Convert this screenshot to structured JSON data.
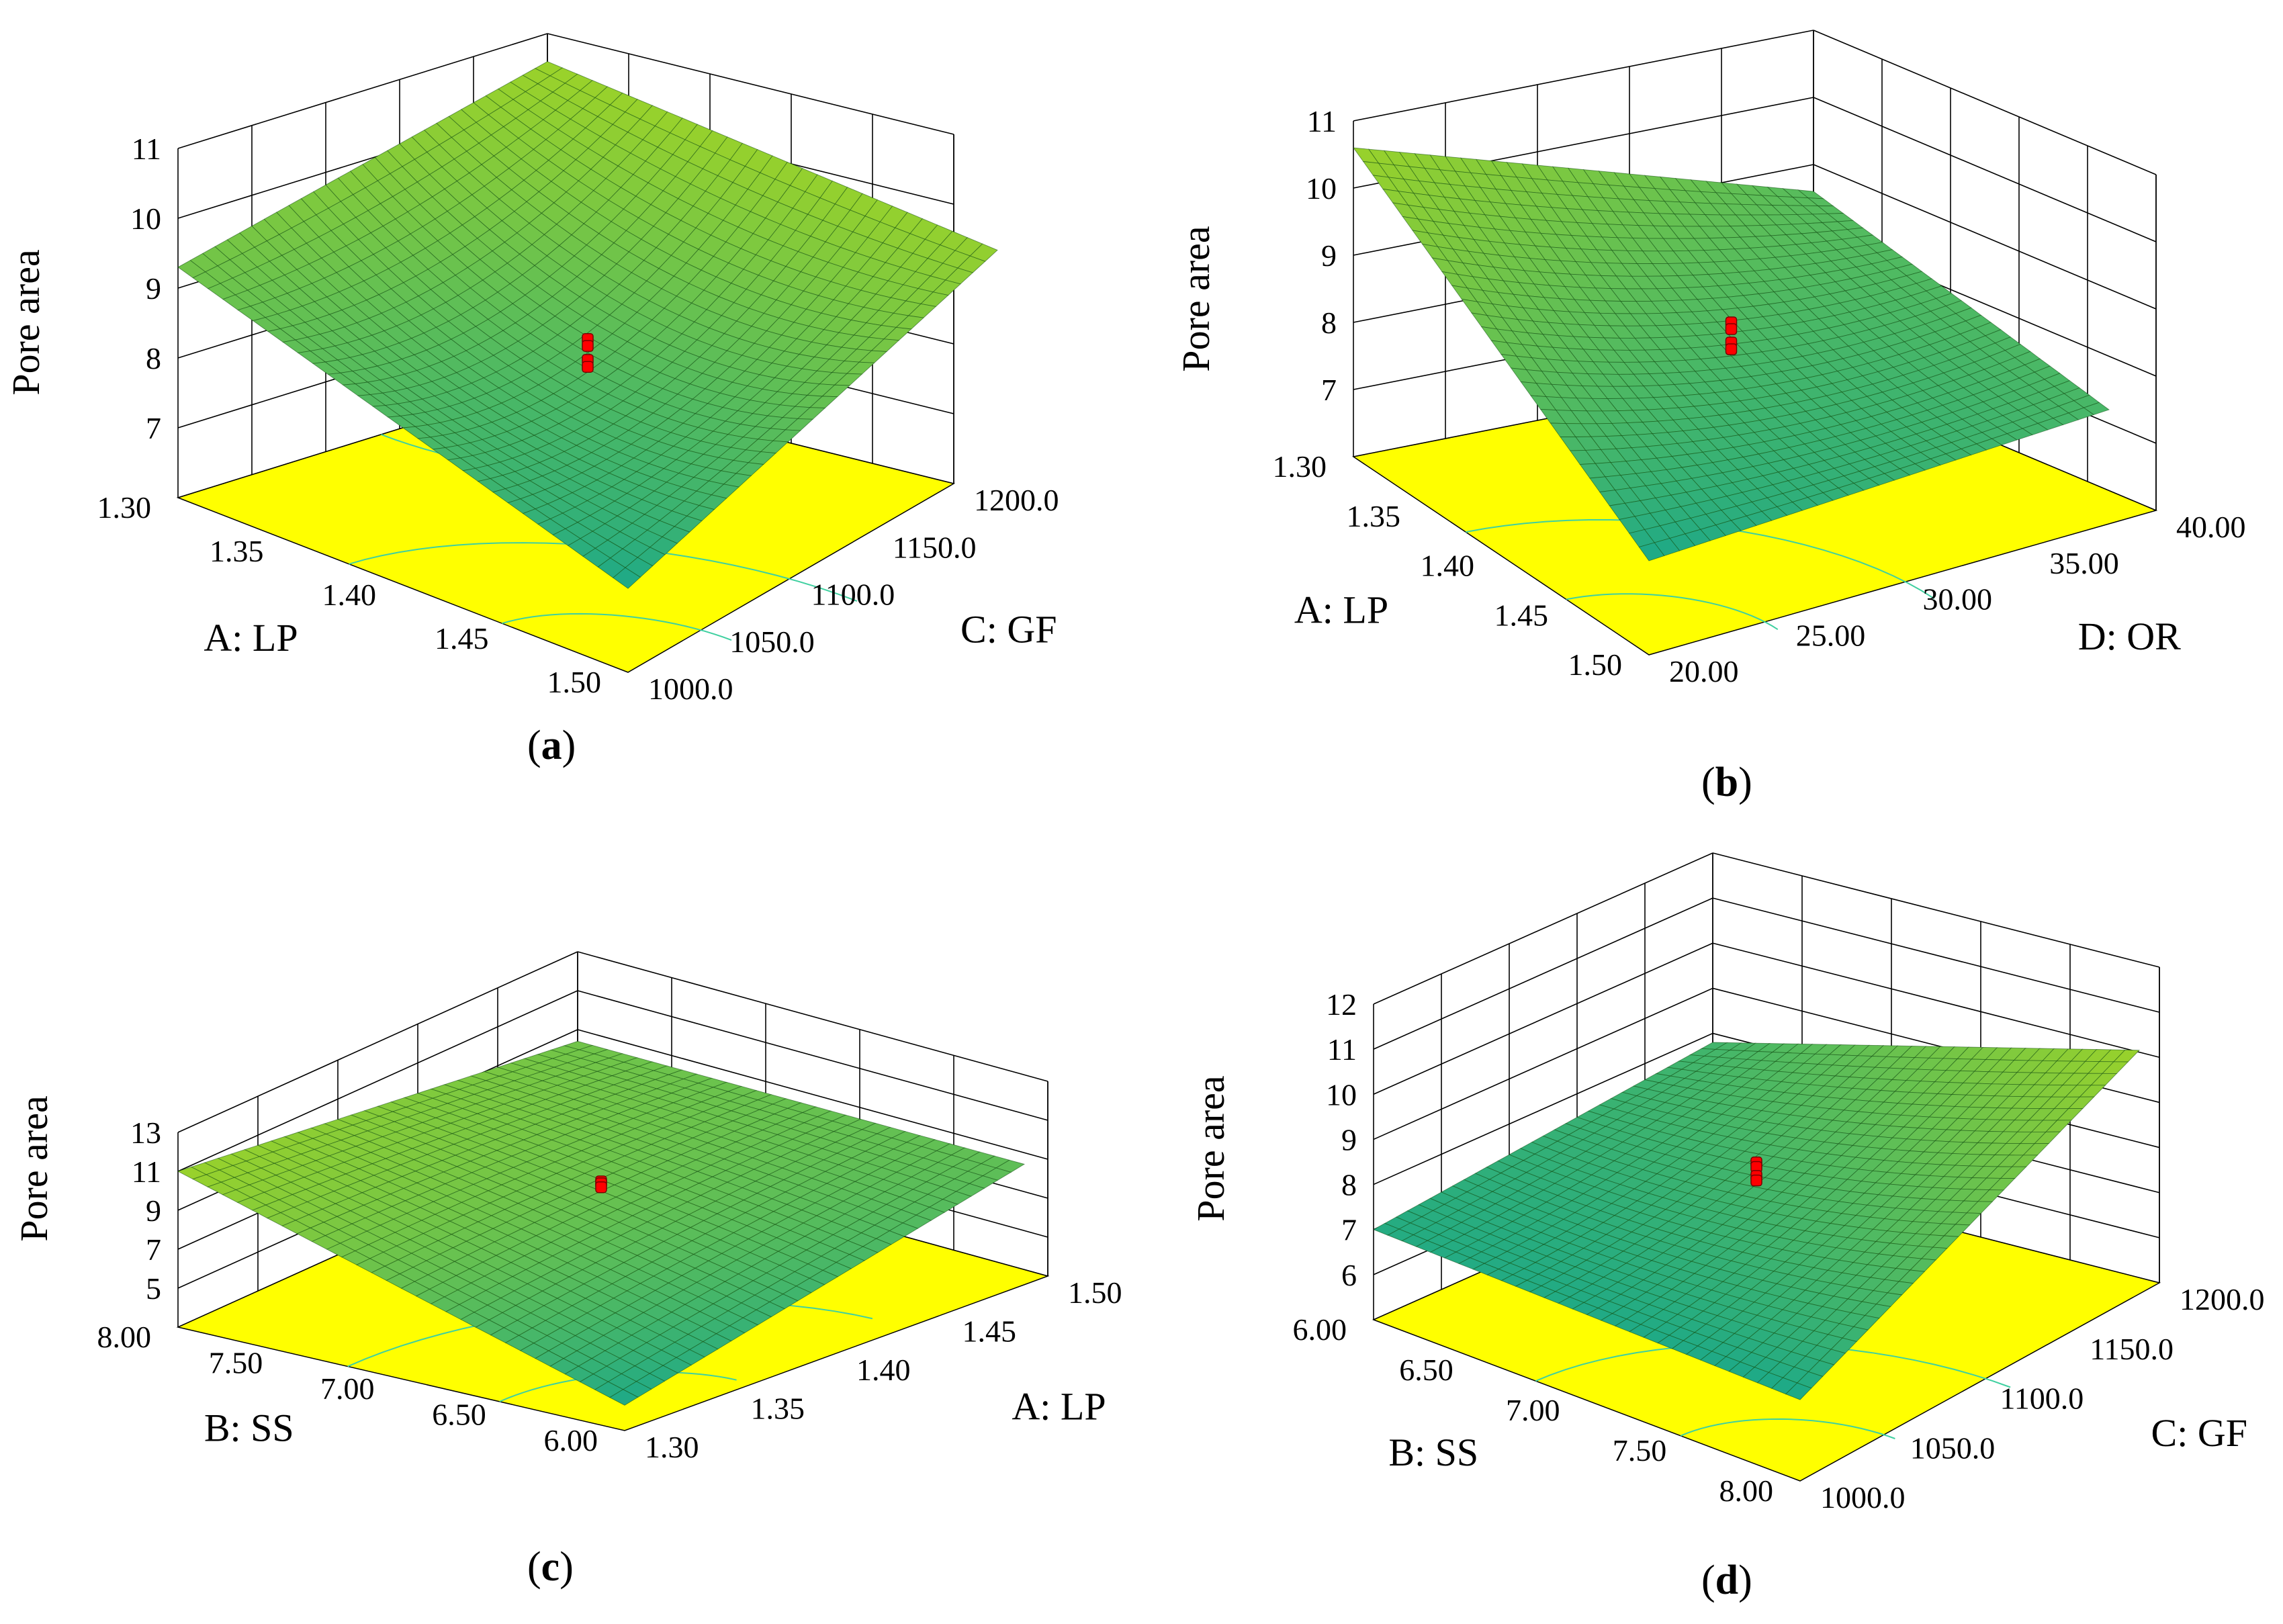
{
  "figure": {
    "colors": {
      "surface_high": "#9ad22a",
      "surface_low": "#1aa88a",
      "floor": "#ffff00",
      "mesh": "#0e4a0e",
      "point": "#ff0000",
      "contour": "#3fd0a0"
    }
  },
  "chart_data": [
    {
      "type": "surface3d",
      "panel_label": "a",
      "title": "",
      "zlabel": "Pore  area",
      "x_factor": "A: LP",
      "y_factor": "C: GF",
      "x_range": [
        1.3,
        1.5
      ],
      "y_range": [
        1000.0,
        1200.0
      ],
      "x_ticks": [
        "1.30",
        "1.35",
        "1.40",
        "1.45",
        "1.50"
      ],
      "y_ticks": [
        "1000.0",
        "1050.0",
        "1100.0",
        "1150.0",
        "1200.0"
      ],
      "zlim": [
        6,
        11
      ],
      "z_ticks": [
        "7",
        "8",
        "9",
        "10",
        "11"
      ],
      "corner_values": {
        "xlow_ylow": 9.3,
        "xhigh_ylow": 7.2,
        "xlow_yhigh": 10.6,
        "xhigh_yhigh": 10.4
      },
      "center_value": 8.5,
      "design_points": [
        8.7,
        8.6,
        8.4,
        8.3
      ]
    },
    {
      "type": "surface3d",
      "panel_label": "b",
      "title": "",
      "zlabel": "Pore  area",
      "x_factor": "A: LP",
      "y_factor": "D: OR",
      "x_range": [
        1.3,
        1.5
      ],
      "y_range": [
        20.0,
        40.0
      ],
      "x_ticks": [
        "1.30",
        "1.35",
        "1.40",
        "1.45",
        "1.50"
      ],
      "y_ticks": [
        "20.00",
        "25.00",
        "30.00",
        "35.00",
        "40.00"
      ],
      "zlim": [
        6,
        11
      ],
      "z_ticks": [
        "7",
        "8",
        "9",
        "10",
        "11"
      ],
      "corner_values": {
        "xlow_ylow": 10.6,
        "xhigh_ylow": 7.4,
        "xlow_yhigh": 8.6,
        "xhigh_yhigh": 8.3
      },
      "center_value": 8.3,
      "design_points": [
        8.8,
        8.7,
        8.5,
        8.4
      ]
    },
    {
      "type": "surface3d",
      "panel_label": "c",
      "title": "",
      "zlabel": "Pore  area",
      "x_factor": "B: SS",
      "y_factor": "A: LP",
      "x_range": [
        8.0,
        6.0
      ],
      "y_range": [
        1.3,
        1.5
      ],
      "x_ticks": [
        "8.00",
        "7.50",
        "7.00",
        "6.50",
        "6.00"
      ],
      "y_ticks": [
        "1.30",
        "1.35",
        "1.40",
        "1.45",
        "1.50"
      ],
      "zlim": [
        3,
        13
      ],
      "z_ticks": [
        "5",
        "7",
        "9",
        "11",
        "13"
      ],
      "corner_values": {
        "xlow_ylow": 11.0,
        "xhigh_ylow": 4.3,
        "xlow_yhigh": 8.4,
        "xhigh_yhigh": 7.4
      },
      "center_value": 8.0,
      "design_points": [
        8.5,
        8.4,
        8.2
      ]
    },
    {
      "type": "surface3d",
      "panel_label": "d",
      "title": "",
      "zlabel": "Pore  area",
      "x_factor": "B: SS",
      "y_factor": "C: GF",
      "x_range": [
        6.0,
        8.0
      ],
      "y_range": [
        1000.0,
        1200.0
      ],
      "x_ticks": [
        "6.00",
        "6.50",
        "7.00",
        "7.50",
        "8.00"
      ],
      "y_ticks": [
        "1000.0",
        "1050.0",
        "1100.0",
        "1150.0",
        "1200.0"
      ],
      "zlim": [
        5,
        12
      ],
      "z_ticks": [
        "6",
        "7",
        "8",
        "9",
        "10",
        "11",
        "12"
      ],
      "corner_values": {
        "xlow_ylow": 7.0,
        "xhigh_ylow": 6.8,
        "xlow_yhigh": 7.8,
        "xhigh_yhigh": 11.2
      },
      "center_value": 7.8,
      "design_points": [
        8.6,
        8.5,
        8.3,
        8.2
      ]
    }
  ]
}
